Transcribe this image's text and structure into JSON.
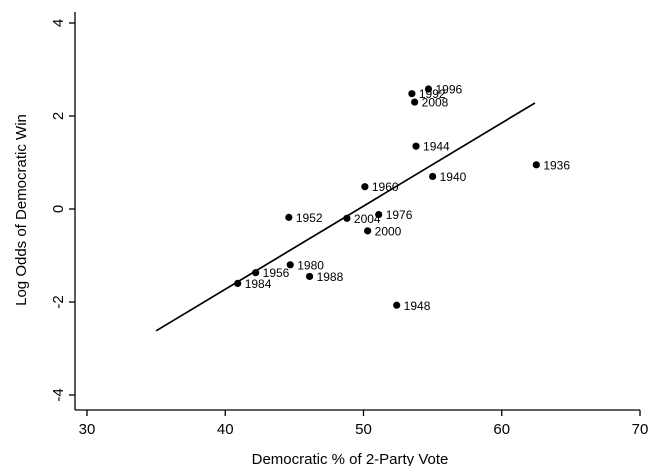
{
  "chart_data": {
    "type": "scatter",
    "xlabel": "Democratic % of 2-Party Vote",
    "ylabel": "Log  Odds of Democratic Win",
    "xlim": [
      30,
      70
    ],
    "ylim": [
      -4,
      4
    ],
    "x_ticks": [
      "30",
      "40",
      "50",
      "60",
      "70"
    ],
    "y_ticks": [
      "4",
      "2",
      "0",
      "-2",
      "-4"
    ],
    "x_tick_values": [
      30,
      40,
      50,
      60,
      70
    ],
    "y_tick_values": [
      4,
      2,
      0,
      -2,
      -4
    ],
    "grid": false,
    "points": [
      {
        "label": "1936",
        "x": 62.5,
        "y": 0.95
      },
      {
        "label": "1940",
        "x": 55.0,
        "y": 0.7
      },
      {
        "label": "1944",
        "x": 53.8,
        "y": 1.35
      },
      {
        "label": "1948",
        "x": 52.4,
        "y": -2.07
      },
      {
        "label": "1952",
        "x": 44.6,
        "y": -0.18
      },
      {
        "label": "1956",
        "x": 42.2,
        "y": -1.37
      },
      {
        "label": "1960",
        "x": 50.1,
        "y": 0.48
      },
      {
        "label": "1976",
        "x": 51.1,
        "y": -0.12
      },
      {
        "label": "1980",
        "x": 44.7,
        "y": -1.2
      },
      {
        "label": "1984",
        "x": 40.9,
        "y": -1.6
      },
      {
        "label": "1988",
        "x": 46.1,
        "y": -1.45
      },
      {
        "label": "1992",
        "x": 53.5,
        "y": 2.48
      },
      {
        "label": "1996",
        "x": 54.7,
        "y": 2.58
      },
      {
        "label": "2000",
        "x": 50.3,
        "y": -0.47
      },
      {
        "label": "2004",
        "x": 48.8,
        "y": -0.2
      },
      {
        "label": "2008",
        "x": 53.7,
        "y": 2.3
      }
    ],
    "fit_line": {
      "x": [
        35,
        62.4
      ],
      "y": [
        -2.62,
        2.28
      ]
    }
  }
}
